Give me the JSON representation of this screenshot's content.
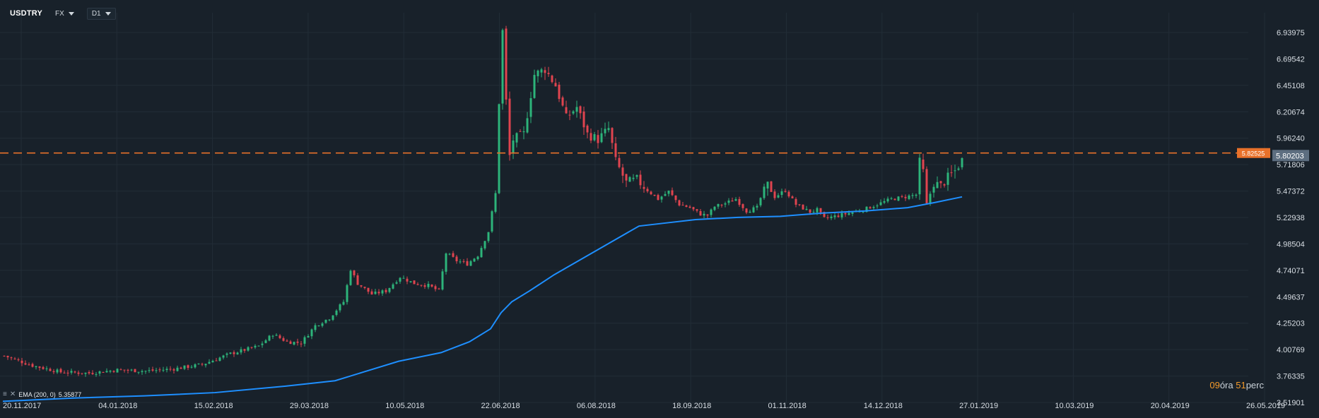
{
  "toolbar": {
    "symbol": "USDTRY",
    "market": "FX",
    "timeframe": "D1"
  },
  "indicator": {
    "label": "EMA (200, 0)",
    "value": "5.35877"
  },
  "timer": {
    "hours": "09",
    "hours_unit": "óra",
    "minutes": "51",
    "minutes_unit": "perc"
  },
  "colors": {
    "background": "#18212a",
    "grid": "#222d37",
    "up_candle": "#2db47a",
    "down_candle": "#e0444f",
    "ema_line": "#1e8fff",
    "alert_line": "#e8712a",
    "alert_label_bg": "#e8712a",
    "price_label_bg": "#5d6e80"
  },
  "chart_data": {
    "type": "candlestick",
    "x_labels": [
      "20.11.2017",
      "04.01.2018",
      "15.02.2018",
      "29.03.2018",
      "10.05.2018",
      "22.06.2018",
      "06.08.2018",
      "18.09.2018",
      "01.11.2018",
      "14.12.2018",
      "27.01.2019",
      "10.03.2019",
      "20.04.2019",
      "26.05.2019"
    ],
    "y_labels": [
      "6.93975",
      "6.69542",
      "6.45108",
      "6.20674",
      "5.96240",
      "5.71806",
      "5.47372",
      "5.22938",
      "4.98504",
      "4.74071",
      "4.49637",
      "4.25203",
      "4.00769",
      "3.76335",
      "3.51901"
    ],
    "ylim": [
      3.51901,
      7.11
    ],
    "alert_level": "5.82525",
    "current_price": "5.80203",
    "close_path": [
      [
        0,
        3.95
      ],
      [
        40,
        3.86
      ],
      [
        80,
        3.8
      ],
      [
        120,
        3.79
      ],
      [
        160,
        3.82
      ],
      [
        200,
        3.81
      ],
      [
        240,
        3.83
      ],
      [
        280,
        3.87
      ],
      [
        320,
        3.97
      ],
      [
        360,
        4.04
      ],
      [
        380,
        4.15
      ],
      [
        400,
        4.08
      ],
      [
        420,
        4.07
      ],
      [
        440,
        4.23
      ],
      [
        460,
        4.3
      ],
      [
        480,
        4.45
      ],
      [
        490,
        4.75
      ],
      [
        500,
        4.62
      ],
      [
        520,
        4.52
      ],
      [
        540,
        4.55
      ],
      [
        560,
        4.68
      ],
      [
        580,
        4.62
      ],
      [
        600,
        4.6
      ],
      [
        615,
        4.55
      ],
      [
        625,
        4.9
      ],
      [
        640,
        4.83
      ],
      [
        655,
        4.8
      ],
      [
        670,
        4.88
      ],
      [
        685,
        5.1
      ],
      [
        695,
        5.45
      ],
      [
        700,
        6.3
      ],
      [
        705,
        6.95
      ],
      [
        710,
        6.3
      ],
      [
        715,
        5.8
      ],
      [
        720,
        5.95
      ],
      [
        735,
        6.0
      ],
      [
        750,
        6.55
      ],
      [
        765,
        6.6
      ],
      [
        780,
        6.45
      ],
      [
        795,
        6.15
      ],
      [
        810,
        6.25
      ],
      [
        825,
        6.0
      ],
      [
        840,
        5.95
      ],
      [
        855,
        6.05
      ],
      [
        865,
        5.75
      ],
      [
        880,
        5.55
      ],
      [
        895,
        5.58
      ],
      [
        910,
        5.48
      ],
      [
        925,
        5.4
      ],
      [
        940,
        5.47
      ],
      [
        955,
        5.35
      ],
      [
        970,
        5.32
      ],
      [
        985,
        5.26
      ],
      [
        995,
        5.25
      ],
      [
        1005,
        5.33
      ],
      [
        1020,
        5.36
      ],
      [
        1035,
        5.4
      ],
      [
        1050,
        5.29
      ],
      [
        1065,
        5.32
      ],
      [
        1078,
        5.55
      ],
      [
        1090,
        5.42
      ],
      [
        1105,
        5.48
      ],
      [
        1120,
        5.35
      ],
      [
        1140,
        5.28
      ],
      [
        1150,
        5.3
      ],
      [
        1160,
        5.22
      ],
      [
        1175,
        5.24
      ],
      [
        1195,
        5.27
      ],
      [
        1215,
        5.3
      ],
      [
        1235,
        5.35
      ],
      [
        1255,
        5.4
      ],
      [
        1275,
        5.42
      ],
      [
        1290,
        5.44
      ],
      [
        1296,
        5.8
      ],
      [
        1300,
        5.65
      ],
      [
        1305,
        5.35
      ],
      [
        1315,
        5.55
      ],
      [
        1325,
        5.52
      ],
      [
        1335,
        5.6
      ],
      [
        1345,
        5.66
      ],
      [
        1357,
        5.78
      ]
    ],
    "ema_path": [
      [
        0,
        3.53
      ],
      [
        100,
        3.56
      ],
      [
        200,
        3.58
      ],
      [
        300,
        3.61
      ],
      [
        400,
        3.67
      ],
      [
        470,
        3.72
      ],
      [
        510,
        3.8
      ],
      [
        560,
        3.9
      ],
      [
        620,
        3.98
      ],
      [
        660,
        4.08
      ],
      [
        690,
        4.2
      ],
      [
        705,
        4.35
      ],
      [
        720,
        4.45
      ],
      [
        745,
        4.55
      ],
      [
        780,
        4.7
      ],
      [
        820,
        4.85
      ],
      [
        860,
        5.0
      ],
      [
        900,
        5.15
      ],
      [
        940,
        5.18
      ],
      [
        980,
        5.21
      ],
      [
        1040,
        5.23
      ],
      [
        1100,
        5.24
      ],
      [
        1160,
        5.27
      ],
      [
        1220,
        5.29
      ],
      [
        1280,
        5.32
      ],
      [
        1320,
        5.37
      ],
      [
        1357,
        5.42
      ]
    ]
  }
}
